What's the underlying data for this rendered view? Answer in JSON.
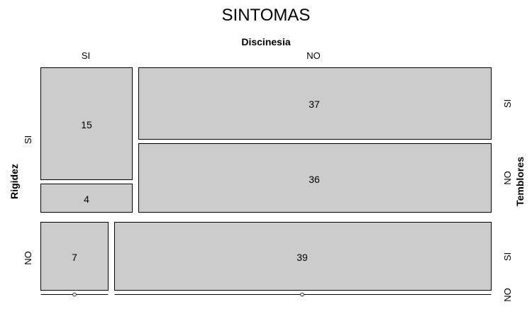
{
  "chart_data": {
    "type": "mosaic",
    "title": "SINTOMAS",
    "variables": {
      "top": {
        "name": "Discinesia",
        "levels": [
          "SI",
          "NO"
        ]
      },
      "left": {
        "name": "Rigidez",
        "levels": [
          "SI",
          "NO"
        ]
      },
      "right": {
        "name": "Temblores",
        "levels": [
          "SI",
          "NO"
        ]
      }
    },
    "cells": [
      {
        "rigidez": "SI",
        "discinesia": "SI",
        "temblores": "SI",
        "count": 15
      },
      {
        "rigidez": "SI",
        "discinesia": "SI",
        "temblores": "NO",
        "count": 4
      },
      {
        "rigidez": "SI",
        "discinesia": "NO",
        "temblores": "SI",
        "count": 37
      },
      {
        "rigidez": "SI",
        "discinesia": "NO",
        "temblores": "NO",
        "count": 36
      },
      {
        "rigidez": "NO",
        "discinesia": "SI",
        "temblores": "SI",
        "count": 7
      },
      {
        "rigidez": "NO",
        "discinesia": "SI",
        "temblores": "NO",
        "count": 0
      },
      {
        "rigidez": "NO",
        "discinesia": "NO",
        "temblores": "SI",
        "count": 39
      },
      {
        "rigidez": "NO",
        "discinesia": "NO",
        "temblores": "NO",
        "count": 0
      }
    ],
    "colors": {
      "cell_fill": "#cccccc",
      "stroke": "#000000"
    }
  }
}
